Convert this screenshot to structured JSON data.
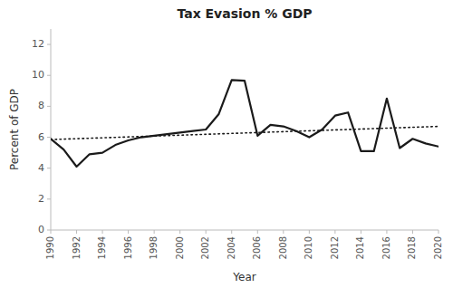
{
  "chart_data": {
    "type": "line",
    "title": "Tax Evasion % GDP",
    "xlabel": "Year",
    "ylabel": "Percent of GDP",
    "series": [
      {
        "x": [
          1990,
          1991,
          1992,
          1993,
          1994,
          1995,
          1996,
          1997,
          1998,
          1999,
          2000,
          2001,
          2002,
          2003,
          2004,
          2005,
          2006,
          2007,
          2008,
          2009,
          2010,
          2011,
          2012,
          2013,
          2014,
          2015,
          2016,
          2017,
          2018,
          2019,
          2020
        ],
        "values": [
          5.9,
          5.2,
          4.1,
          4.9,
          5.0,
          5.5,
          5.8,
          6.0,
          6.1,
          6.2,
          6.3,
          6.4,
          6.5,
          7.5,
          9.7,
          9.65,
          6.1,
          6.8,
          6.7,
          6.4,
          6.0,
          6.5,
          7.4,
          7.6,
          5.1,
          5.1,
          8.5,
          5.3,
          5.9,
          5.6,
          5.4
        ],
        "color": "#1a1a1a",
        "line_style": "solid"
      },
      {
        "x": [
          1990,
          2020
        ],
        "values": [
          5.85,
          6.7
        ],
        "color": "#1a1a1a",
        "line_style": "dotted"
      }
    ],
    "xlim": [
      1990,
      2020
    ],
    "xticks": [
      1990,
      1992,
      1994,
      1996,
      1998,
      2000,
      2002,
      2004,
      2006,
      2008,
      2010,
      2012,
      2014,
      2016,
      2018,
      2020
    ],
    "ylim": [
      0,
      13
    ],
    "yticks": [
      0,
      2,
      4,
      6,
      8,
      10,
      12
    ],
    "grid": false
  }
}
